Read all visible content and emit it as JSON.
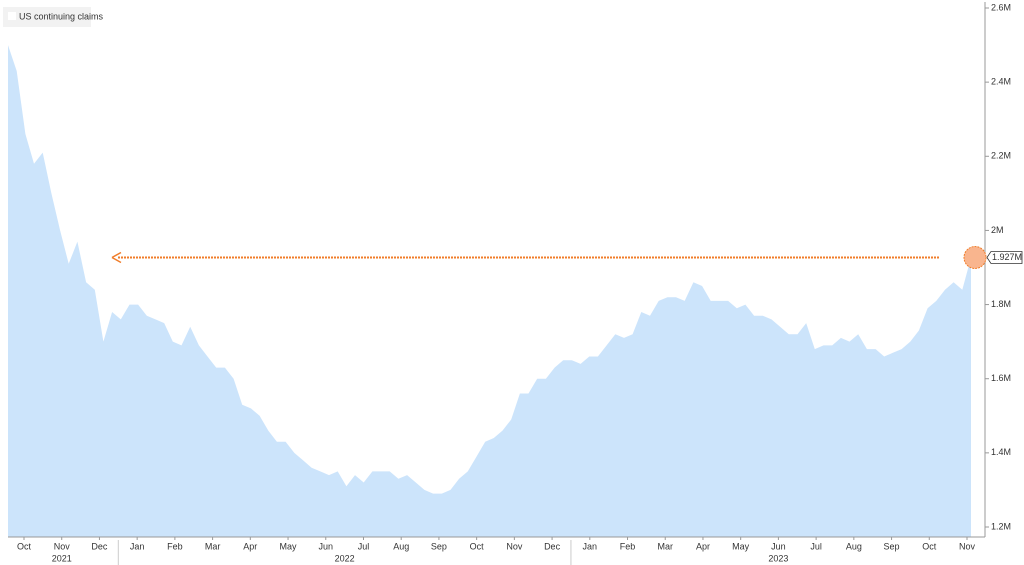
{
  "chart_data": {
    "type": "area",
    "series": [
      {
        "name": "US continuing claims",
        "color": "#cce4fb",
        "values": [
          2.5,
          2.43,
          2.26,
          2.18,
          2.21,
          2.1,
          2.0,
          1.91,
          1.97,
          1.86,
          1.84,
          1.7,
          1.78,
          1.76,
          1.8,
          1.8,
          1.77,
          1.76,
          1.75,
          1.7,
          1.69,
          1.74,
          1.69,
          1.66,
          1.63,
          1.63,
          1.6,
          1.53,
          1.52,
          1.5,
          1.46,
          1.43,
          1.43,
          1.4,
          1.38,
          1.36,
          1.35,
          1.34,
          1.35,
          1.31,
          1.34,
          1.32,
          1.35,
          1.35,
          1.35,
          1.33,
          1.34,
          1.32,
          1.3,
          1.29,
          1.29,
          1.3,
          1.33,
          1.35,
          1.39,
          1.43,
          1.44,
          1.46,
          1.49,
          1.56,
          1.56,
          1.6,
          1.6,
          1.63,
          1.65,
          1.65,
          1.64,
          1.66,
          1.66,
          1.69,
          1.72,
          1.71,
          1.72,
          1.78,
          1.77,
          1.81,
          1.82,
          1.82,
          1.81,
          1.86,
          1.85,
          1.81,
          1.81,
          1.81,
          1.79,
          1.8,
          1.77,
          1.77,
          1.76,
          1.74,
          1.72,
          1.72,
          1.75,
          1.68,
          1.69,
          1.69,
          1.71,
          1.7,
          1.72,
          1.68,
          1.68,
          1.66,
          1.67,
          1.68,
          1.7,
          1.73,
          1.79,
          1.81,
          1.84,
          1.86,
          1.84,
          1.927
        ]
      }
    ],
    "last_value_label": "1.927M",
    "months": [
      "Oct",
      "Nov",
      "Dec",
      "Jan",
      "Feb",
      "Mar",
      "Apr",
      "May",
      "Jun",
      "Jul",
      "Aug",
      "Sep",
      "Oct",
      "Nov",
      "Dec",
      "Jan",
      "Feb",
      "Mar",
      "Apr",
      "May",
      "Jun",
      "Jul",
      "Aug",
      "Sep",
      "Oct",
      "Nov"
    ],
    "years": [
      "2021",
      "2022",
      "2023"
    ],
    "ylim": [
      1.2,
      2.6
    ],
    "yticks": [
      {
        "value": 1.2,
        "label": "1.2M"
      },
      {
        "value": 1.4,
        "label": "1.4M"
      },
      {
        "value": 1.6,
        "label": "1.6M"
      },
      {
        "value": 1.8,
        "label": "1.8M"
      },
      {
        "value": 2,
        "label": "2M"
      },
      {
        "value": 2.2,
        "label": "2.2M"
      },
      {
        "value": 2.4,
        "label": "2.4M"
      },
      {
        "value": 2.6,
        "label": "2.6M"
      }
    ],
    "axis_side": "right"
  }
}
